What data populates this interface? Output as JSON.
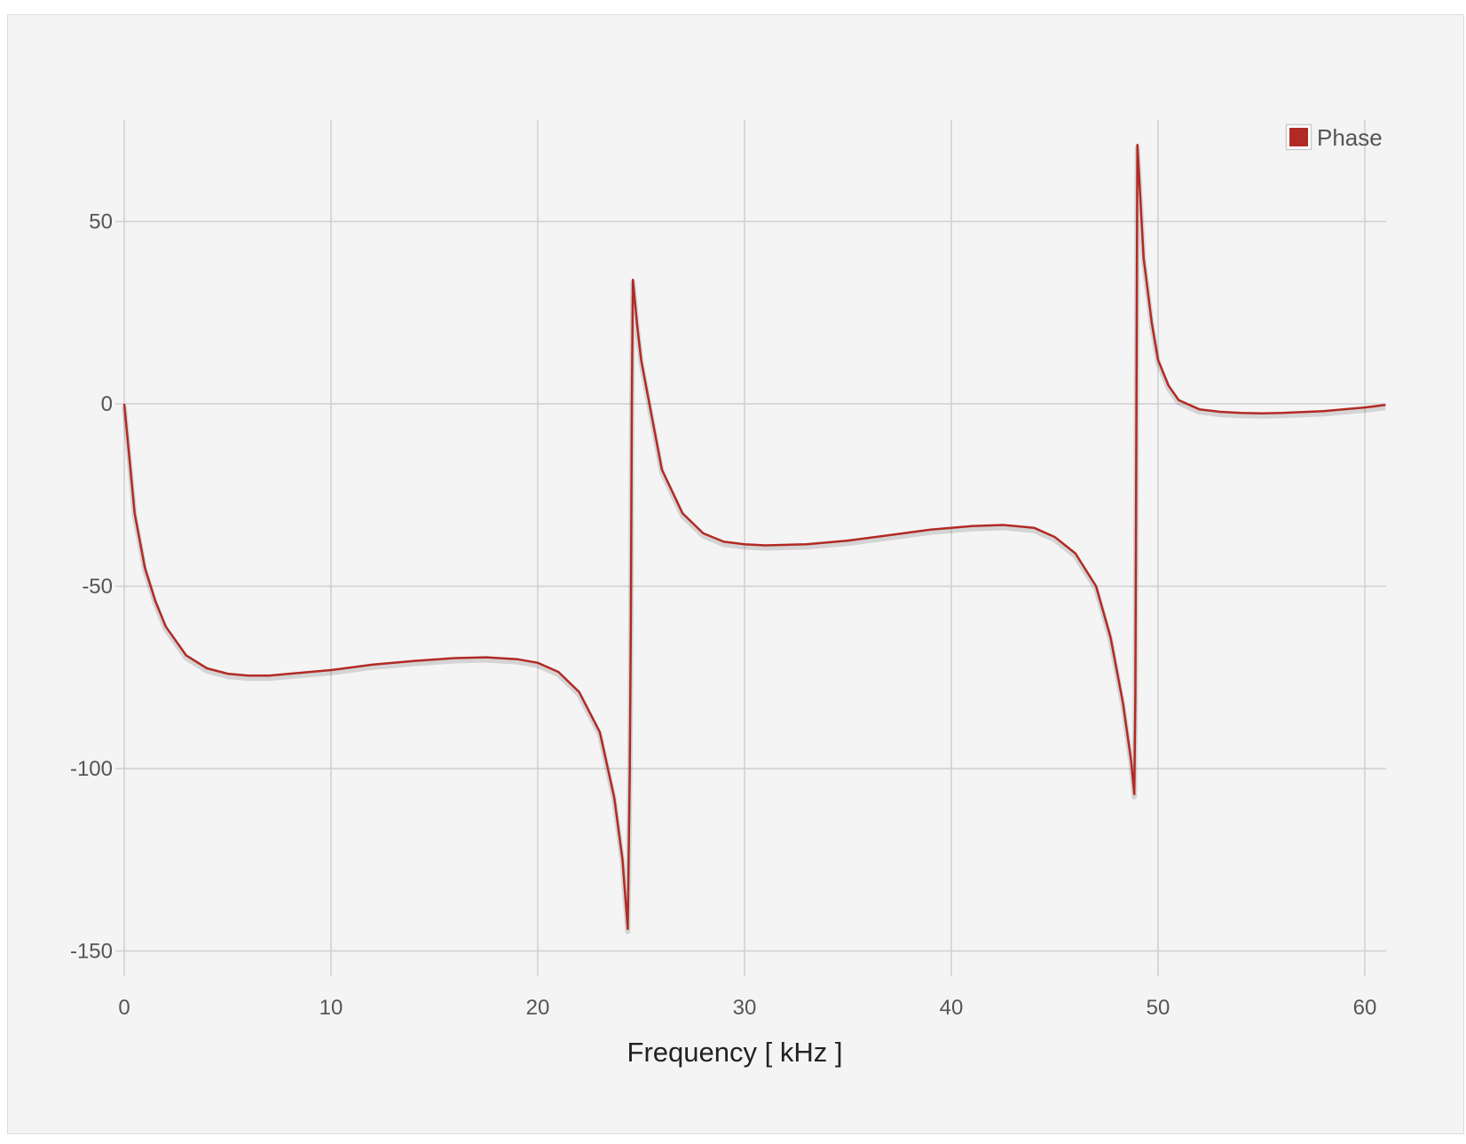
{
  "chart_data": {
    "type": "line",
    "title": "",
    "xlabel": "Frequency [ kHz ]",
    "ylabel": "",
    "xlim": [
      0,
      61
    ],
    "ylim": [
      -160,
      75
    ],
    "x_ticks": [
      0,
      10,
      20,
      30,
      40,
      50,
      60
    ],
    "y_ticks": [
      50,
      0,
      -50,
      -100,
      -150
    ],
    "x_tick_labels": [
      "0",
      "10",
      "20",
      "30",
      "40",
      "50",
      "60"
    ],
    "y_tick_labels": [
      "50",
      "0",
      "-50",
      "-100",
      "-150"
    ],
    "grid": true,
    "legend_position": "top-right",
    "series": [
      {
        "name": "Phase",
        "color": "#b22a24",
        "points": [
          [
            0,
            0
          ],
          [
            0.5,
            -30
          ],
          [
            1,
            -45
          ],
          [
            1.5,
            -54
          ],
          [
            2,
            -61
          ],
          [
            3,
            -69
          ],
          [
            4,
            -72.5
          ],
          [
            5,
            -74
          ],
          [
            6,
            -74.5
          ],
          [
            7,
            -74.5
          ],
          [
            8,
            -74
          ],
          [
            10,
            -73
          ],
          [
            12,
            -71.5
          ],
          [
            14,
            -70.5
          ],
          [
            16,
            -69.7
          ],
          [
            17.5,
            -69.5
          ],
          [
            19,
            -70
          ],
          [
            20,
            -71
          ],
          [
            21,
            -73.5
          ],
          [
            22,
            -79
          ],
          [
            23,
            -90
          ],
          [
            23.7,
            -108
          ],
          [
            24.1,
            -125
          ],
          [
            24.35,
            -144
          ],
          [
            24.45,
            -100
          ],
          [
            24.5,
            -60
          ],
          [
            24.55,
            0
          ],
          [
            24.6,
            34
          ],
          [
            24.8,
            22
          ],
          [
            25,
            12
          ],
          [
            25.5,
            -3
          ],
          [
            26,
            -18
          ],
          [
            27,
            -30
          ],
          [
            28,
            -35.5
          ],
          [
            29,
            -37.8
          ],
          [
            30,
            -38.5
          ],
          [
            31,
            -38.8
          ],
          [
            33,
            -38.5
          ],
          [
            35,
            -37.5
          ],
          [
            37,
            -36
          ],
          [
            39,
            -34.5
          ],
          [
            41,
            -33.5
          ],
          [
            42.5,
            -33.2
          ],
          [
            44,
            -34
          ],
          [
            45,
            -36.5
          ],
          [
            46,
            -41
          ],
          [
            47,
            -50
          ],
          [
            47.7,
            -64
          ],
          [
            48.3,
            -82
          ],
          [
            48.7,
            -98
          ],
          [
            48.85,
            -107
          ],
          [
            48.9,
            -80
          ],
          [
            48.95,
            -10
          ],
          [
            48.98,
            40
          ],
          [
            49,
            71
          ],
          [
            49.3,
            40
          ],
          [
            49.7,
            22
          ],
          [
            50,
            12
          ],
          [
            50.5,
            5
          ],
          [
            51,
            1
          ],
          [
            52,
            -1.5
          ],
          [
            53,
            -2.2
          ],
          [
            54,
            -2.5
          ],
          [
            55,
            -2.6
          ],
          [
            56,
            -2.5
          ],
          [
            58,
            -2
          ],
          [
            60,
            -1
          ],
          [
            61,
            -0.3
          ]
        ]
      }
    ]
  }
}
